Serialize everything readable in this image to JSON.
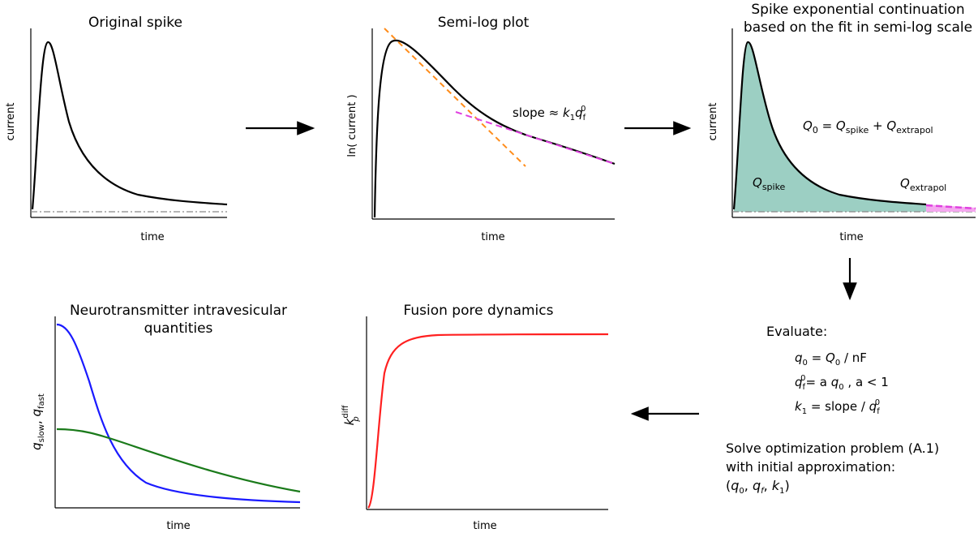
{
  "panels": {
    "original": {
      "title": "Original spike",
      "ylabel": "current",
      "xlabel": "time"
    },
    "semilog": {
      "title": "Semi-log plot",
      "ylabel": "ln( current )",
      "xlabel": "time",
      "slope_prefix": "slope ≈ ",
      "slope_k": "k",
      "slope_k_sub": "1",
      "slope_q": "q",
      "slope_q_sub": "f",
      "slope_q_sup": "0"
    },
    "continuation": {
      "title_line1": "Spike exponential continuation",
      "title_line2": "based on the fit in semi-log scale",
      "ylabel": "current",
      "xlabel": "time",
      "eq_Q": "Q",
      "eq_Q_sub": "0",
      "eq_eq": " = ",
      "eq_Q1": "Q",
      "eq_Q1_sub": "spike",
      "eq_plus": " + ",
      "eq_Q2": "Q",
      "eq_Q2_sub": "extrapol",
      "label_spike_Q": "Q",
      "label_spike_sub": "spike",
      "label_extra_Q": "Q",
      "label_extra_sub": "extrapol",
      "fill_color": "#9ccfc3"
    },
    "quantities": {
      "title_line1": "Neurotransmitter intravesicular",
      "title_line2": "quantities",
      "ylabel_q1": "q",
      "ylabel_q1_sub": "slow",
      "ylabel_comma": ", ",
      "ylabel_q2": "q",
      "ylabel_q2_sub": "fast",
      "xlabel": "time",
      "blue": "#1a1aff",
      "green": "#1a7a1a"
    },
    "fusion": {
      "title": "Fusion pore dynamics",
      "ylabel_k": "k",
      "ylabel_sup": "diff",
      "ylabel_sub": "p",
      "xlabel": "time",
      "color": "#ff2020"
    }
  },
  "evaluate": {
    "heading": "Evaluate:",
    "line1_q": "q",
    "line1_q_sub": "0",
    "line1_rest_a": " = ",
    "line1_Q": "Q",
    "line1_Q_sub": "0",
    "line1_rest_b": " / nF",
    "line2_q": "q",
    "line2_q_sub": "f",
    "line2_q_sup": "0",
    "line2_rest_a": "= a ",
    "line2_q2": "q",
    "line2_q2_sub": "0",
    "line2_rest_b": " ,  a < 1",
    "line3_k": "k",
    "line3_k_sub": "1",
    "line3_rest": " = slope / ",
    "line3_q": "q",
    "line3_q_sub": "f",
    "line3_q_sup": "0"
  },
  "solve": {
    "line1": "Solve optimization problem (A.1)",
    "line2": "with initial approximation:",
    "line3_open": "(",
    "line3_q0": "q",
    "line3_q0_sub": "0",
    "line3_sep1": ", ",
    "line3_qf": "q",
    "line3_qf_sub": "f",
    "line3_sep2": ", ",
    "line3_k": "k",
    "line3_k_sub": "1",
    "line3_close": ")"
  },
  "colors": {
    "dash_orange": "#ff8c1a",
    "dash_magenta": "#e040e0",
    "baseline": "#888888"
  }
}
